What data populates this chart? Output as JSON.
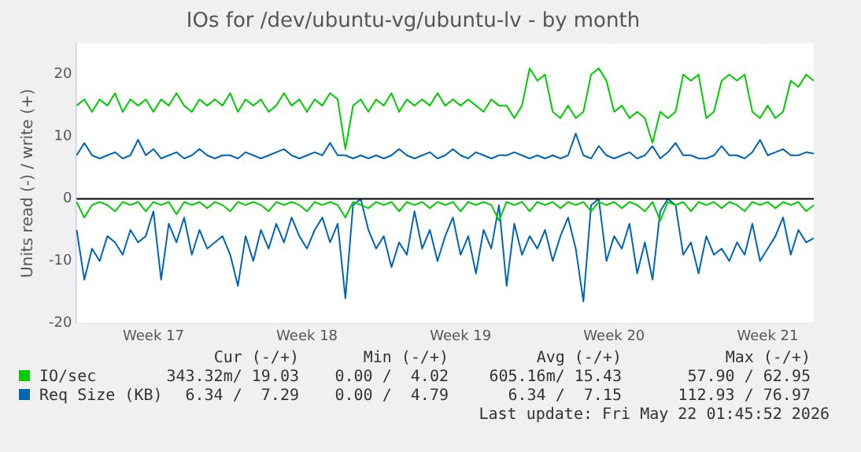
{
  "chart_data": {
    "type": "line",
    "title": "IOs for /dev/ubuntu-vg/ubuntu-lv - by month",
    "ylabel": "Units read (-) / write (+)",
    "categories": [
      null,
      null,
      null,
      null,
      null,
      null,
      null,
      null,
      null,
      null,
      "Week 17",
      null,
      null,
      null,
      null,
      null,
      null,
      null,
      null,
      null,
      null,
      null,
      null,
      null,
      null,
      null,
      null,
      null,
      null,
      null,
      "Week 18",
      null,
      null,
      null,
      null,
      null,
      null,
      null,
      null,
      null,
      null,
      null,
      null,
      null,
      null,
      null,
      null,
      null,
      null,
      null,
      "Week 19",
      null,
      null,
      null,
      null,
      null,
      null,
      null,
      null,
      null,
      null,
      null,
      null,
      null,
      null,
      null,
      null,
      null,
      null,
      null,
      "Week 20",
      null,
      null,
      null,
      null,
      null,
      null,
      null,
      null,
      null,
      null,
      null,
      null,
      null,
      null,
      null,
      null,
      null,
      null,
      null,
      "Week 21",
      null,
      null,
      null,
      null,
      null,
      null
    ],
    "series": [
      {
        "name": "IO/sec",
        "color": "#00cc00",
        "values": [
          15,
          16,
          14,
          16,
          15,
          17,
          14,
          16,
          15,
          16,
          14,
          16,
          15,
          17,
          15,
          14,
          16,
          15,
          16,
          15,
          17,
          14,
          16,
          15,
          16,
          14,
          15,
          17,
          15,
          16,
          14,
          16,
          15,
          17,
          16,
          8,
          15,
          16,
          14,
          16,
          15,
          17,
          14,
          16,
          15,
          16,
          15,
          17,
          15,
          16,
          15,
          16,
          15,
          14,
          16,
          15,
          15,
          13,
          15,
          21,
          19,
          20,
          14,
          13,
          15,
          13,
          14,
          20,
          21,
          19,
          14,
          15,
          13,
          14,
          13,
          9,
          14,
          13,
          14,
          20,
          19,
          20,
          13,
          14,
          19,
          20,
          19,
          20,
          14,
          13,
          15,
          13,
          14,
          19,
          18,
          20,
          19
        ]
      },
      {
        "name": "Req Size (KB)",
        "color": "#0066b3",
        "values": [
          7,
          9,
          7,
          6.5,
          7,
          7.5,
          6.5,
          7,
          9.5,
          7,
          8,
          6.5,
          7,
          7.5,
          6.5,
          7,
          8,
          7,
          6.5,
          7,
          7,
          6.5,
          7.5,
          7,
          6.5,
          7,
          7.5,
          8,
          7,
          6.5,
          7,
          7.5,
          7,
          9,
          7,
          7,
          6.5,
          7,
          6.5,
          7,
          6.5,
          7,
          8,
          7,
          6.5,
          7,
          7.5,
          6.5,
          7,
          8,
          7,
          6.5,
          7.5,
          7,
          6.5,
          7,
          7,
          7.5,
          7,
          6.5,
          7,
          6.5,
          7,
          6.5,
          7,
          10.5,
          7,
          6.5,
          8.5,
          7,
          6.5,
          7,
          7.5,
          6.5,
          7,
          8.5,
          6.5,
          7.5,
          9,
          7,
          7,
          6.5,
          6.5,
          7,
          8.5,
          7,
          7,
          6.5,
          7.5,
          9.5,
          7,
          7.5,
          8,
          7,
          7,
          7.5,
          7.3
        ]
      },
      {
        "color": "#00cc00",
        "values": [
          -0.5,
          -3,
          -1,
          -0.5,
          -1,
          -2,
          -0.5,
          -1,
          -0.5,
          -2,
          -0.5,
          -1,
          -0.5,
          -2.5,
          -0.5,
          -1,
          -0.5,
          -1.5,
          -0.5,
          -1,
          -2,
          -0.5,
          -1,
          -0.5,
          -1,
          -2,
          -0.5,
          -1,
          -0.5,
          -1,
          -2,
          -0.5,
          -1,
          -0.5,
          -1,
          -3,
          -0.5,
          -1,
          -1.5,
          -0.5,
          -1,
          -0.5,
          -2,
          -0.5,
          -1,
          -0.5,
          -1.5,
          -0.5,
          -1,
          -0.5,
          -2,
          -0.5,
          -1,
          -0.5,
          -1,
          -3.5,
          -0.5,
          -1,
          -0.5,
          -2,
          -0.5,
          -1,
          -0.5,
          -1.5,
          -0.5,
          -1,
          -0.5,
          -2,
          -0.5,
          -1,
          -0.5,
          -1.5,
          -0.5,
          -1,
          -2,
          -0.5,
          -3.5,
          -0.5,
          -1,
          -0.5,
          -2,
          -0.5,
          -1,
          -0.5,
          -1.5,
          -0.5,
          -1,
          -2,
          -0.5,
          -1,
          -0.5,
          -1.5,
          -0.5,
          -1,
          -0.5,
          -2,
          -1
        ]
      },
      {
        "color": "#0066b3",
        "values": [
          -5,
          -13,
          -8,
          -10,
          -6,
          -7,
          -9,
          -5,
          -7,
          -6,
          -2,
          -13,
          -4,
          -7,
          -3,
          -9,
          -5,
          -8,
          -7,
          -6,
          -9,
          -14,
          -6,
          -10,
          -5,
          -8,
          -4,
          -7,
          -3,
          -6,
          -8,
          -5,
          -3,
          -7,
          -4,
          -16,
          -1,
          0,
          -5,
          -8,
          -6,
          -11,
          -7,
          -9,
          -2,
          -8,
          -5,
          -10,
          -6,
          -3,
          -9,
          -6,
          -12,
          -5,
          -8,
          -1,
          -14,
          -4,
          -9,
          -6,
          -8,
          -5,
          -10,
          -6,
          -3,
          -8,
          -16.5,
          -1,
          0,
          -10,
          -6,
          -8,
          -4,
          -12,
          -7,
          -13,
          -2,
          0,
          -1,
          -9,
          -7,
          -12,
          -6,
          -9,
          -8,
          -10,
          -7,
          -9,
          -4,
          -10,
          -8,
          -6,
          -3,
          -9,
          -5,
          -7,
          -6.3
        ]
      }
    ],
    "ylim": [
      -20,
      25
    ],
    "yticks": [
      -20,
      -10,
      0,
      10,
      20
    ],
    "grid": true,
    "legend": "bottom",
    "marker": "none",
    "line_style": "solid",
    "ref_lines": [
      {
        "axis": "y",
        "value": 0,
        "color": "#000000"
      }
    ],
    "annotations": [
      "Cur (-/+)",
      "Min (-/+)",
      "Avg (-/+)",
      "Max (-/+)",
      "343.32m/ 19.03",
      "0.00 /  4.02",
      "605.16m/ 15.43",
      "57.90 / 62.95",
      "6.34 /  7.29",
      "0.00 /  4.79",
      "6.34 /  7.15",
      "112.93 / 76.97",
      "Last update: Fri May 22 01:45:52 2026"
    ]
  }
}
